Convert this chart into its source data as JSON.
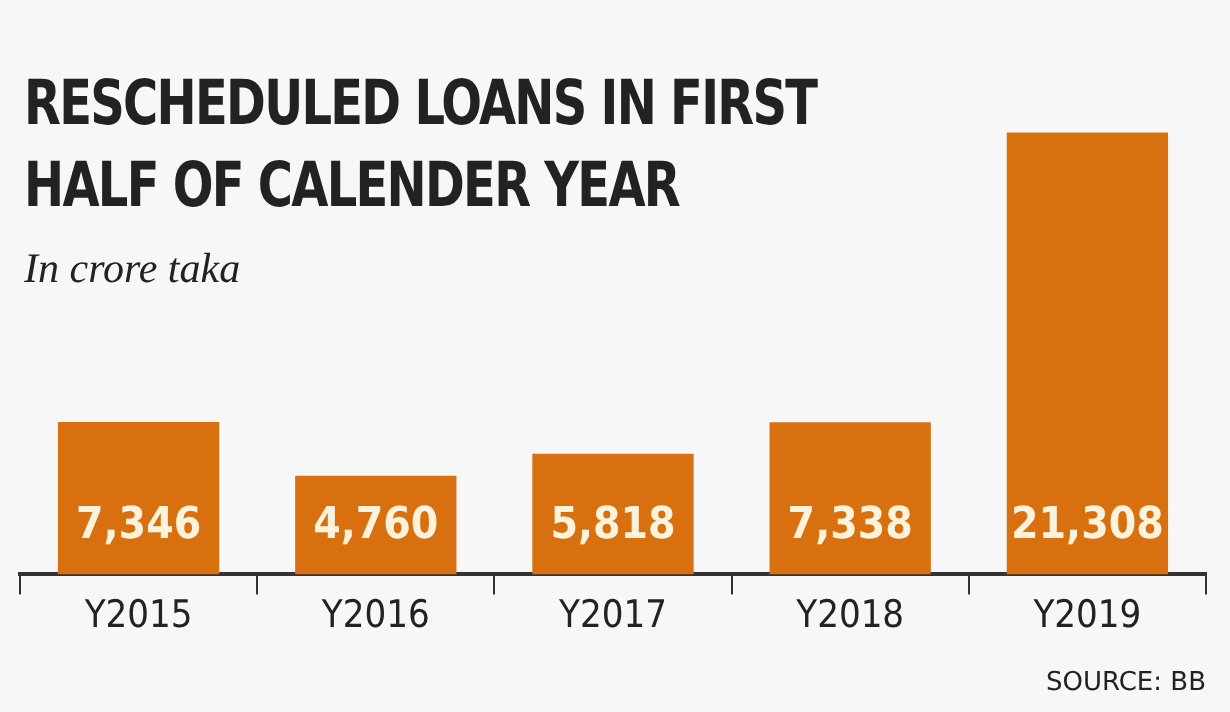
{
  "chart_data": {
    "type": "bar",
    "title": "RESCHEDULED LOANS IN FIRST HALF OF CALENDER YEAR",
    "subtitle": "In crore taka",
    "categories": [
      "Y2015",
      "Y2016",
      "Y2017",
      "Y2018",
      "Y2019"
    ],
    "values": [
      7346,
      4760,
      5818,
      7338,
      21308
    ],
    "value_labels": [
      "7,346",
      "4,760",
      "5,818",
      "7,338",
      "21,308"
    ],
    "color": "#d9700f",
    "grid": false,
    "legend": false,
    "annotations": [
      "SOURCE: BB"
    ]
  }
}
